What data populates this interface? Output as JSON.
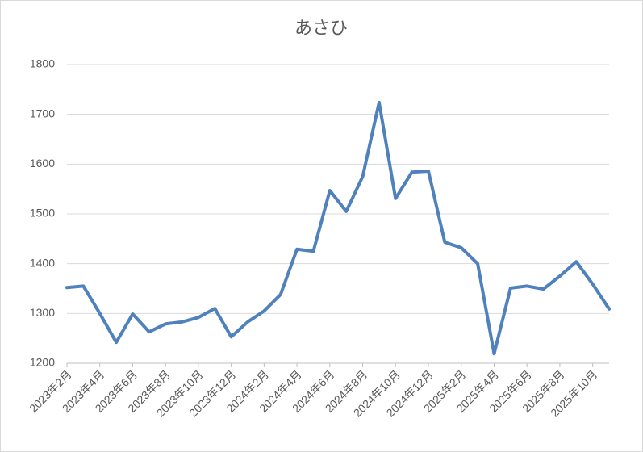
{
  "chart_data": {
    "type": "line",
    "title": "あさひ",
    "categories": [
      "2023年2月",
      null,
      "2023年4月",
      null,
      "2023年6月",
      null,
      "2023年8月",
      null,
      "2023年10月",
      null,
      "2023年12月",
      null,
      "2024年2月",
      null,
      "2024年4月",
      null,
      "2024年6月",
      null,
      "2024年8月",
      null,
      "2024年10月",
      null,
      "2024年12月",
      null,
      "2025年2月",
      null,
      "2025年4月",
      null,
      "2025年6月",
      null,
      "2025年8月",
      null,
      "2025年10月",
      null
    ],
    "series": [
      {
        "name": "あさひ",
        "color": "#4f81bd",
        "values": [
          1352,
          1355,
          1300,
          1242,
          1299,
          1263,
          1279,
          1283,
          1292,
          1310,
          1253,
          1283,
          1305,
          1338,
          1429,
          1425,
          1547,
          1505,
          1575,
          1724,
          1531,
          1584,
          1586,
          1443,
          1432,
          1400,
          1219,
          1351,
          1355,
          1349,
          1375,
          1404,
          1359,
          1309
        ]
      }
    ],
    "ylim": [
      1200,
      1800
    ],
    "yticks": [
      1200,
      1300,
      1400,
      1500,
      1600,
      1700,
      1800
    ],
    "grid": true
  }
}
